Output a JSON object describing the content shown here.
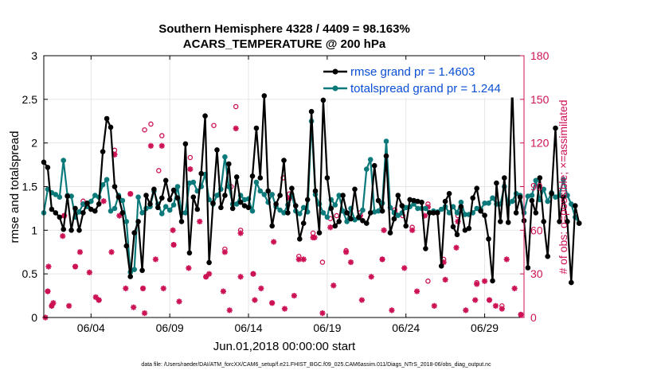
{
  "colors": {
    "rmse": "#000000",
    "spread": "#0c7a7a",
    "obs": "#cc1155",
    "legend_text": "#0a4fd6"
  },
  "chart_data": {
    "type": "line",
    "title_line1": "Southern Hemisphere 4328 / 4409 = 98.163%",
    "title_line2": "ACARS_TEMPERATURE @ 200 hPa",
    "xlabel": "Jun.01,2018 00:00:00 start",
    "ylabel": "rmse and totalspread",
    "y2label": "# of obs: o=possible; ×=assimilated",
    "footer": "data file: /Users/raeder/DAI/ATM_forcXX/CAM6_setup/f.e21.FHIST_BGC.f09_025.CAM6assim.011/Diags_NTrS_2018-06/obs_diag_output.nc",
    "xlim": [
      1,
      31.5
    ],
    "ylim": [
      0,
      3
    ],
    "y2lim": [
      0,
      180
    ],
    "xticks": [
      {
        "label": "06/04",
        "value": 4
      },
      {
        "label": "06/09",
        "value": 9
      },
      {
        "label": "06/14",
        "value": 14
      },
      {
        "label": "06/19",
        "value": 19
      },
      {
        "label": "06/24",
        "value": 24
      },
      {
        "label": "06/29",
        "value": 29
      }
    ],
    "yticks": [
      {
        "label": "0",
        "value": 0
      },
      {
        "label": "0.5",
        "value": 0.5
      },
      {
        "label": "1",
        "value": 1
      },
      {
        "label": "1.5",
        "value": 1.5
      },
      {
        "label": "2",
        "value": 2
      },
      {
        "label": "2.5",
        "value": 2.5
      },
      {
        "label": "3",
        "value": 3
      }
    ],
    "y2ticks": [
      {
        "label": "0",
        "value": 0
      },
      {
        "label": "30",
        "value": 30
      },
      {
        "label": "60",
        "value": 60
      },
      {
        "label": "90",
        "value": 90
      },
      {
        "label": "120",
        "value": 120
      },
      {
        "label": "150",
        "value": 150
      },
      {
        "label": "180",
        "value": 180
      }
    ],
    "legend_position": "top-right",
    "series": [
      {
        "name": "rmse grand pr = 1.4603",
        "key": "rmse",
        "start_day": 1,
        "step_days": 0.25,
        "values": [
          1.78,
          1.72,
          1.24,
          1.2,
          1.15,
          1.01,
          1.39,
          1.0,
          1.25,
          1.0,
          1.2,
          1.31,
          1.24,
          1.22,
          1.3,
          1.9,
          2.28,
          2.18,
          1.5,
          1.38,
          1.2,
          0.82,
          0.47,
          0.97,
          1.1,
          0.54,
          1.4,
          1.3,
          1.47,
          1.26,
          1.37,
          1.57,
          1.35,
          1.46,
          1.37,
          1.1,
          1.99,
          0.74,
          1.38,
          1.24,
          1.65,
          2.31,
          0.63,
          1.31,
          1.92,
          1.26,
          1.4,
          1.76,
          1.25,
          1.61,
          1.32,
          1.28,
          1.26,
          1.62,
          2.17,
          1.6,
          2.54,
          1.45,
          1.05,
          1.3,
          1.4,
          1.8,
          1.2,
          1.48,
          1.28,
          0.9,
          1.08,
          1.35,
          2.36,
          1.45,
          0.97,
          2.49,
          1.6,
          1.25,
          1.05,
          1.1,
          1.4,
          1.2,
          1.13,
          1.47,
          1.15,
          1.11,
          1.08,
          1.2,
          1.74,
          1.34,
          1.22,
          1.85,
          0.97,
          1.13,
          1.4,
          1.28,
          1.05,
          1.35,
          1.34,
          1.33,
          1.32,
          0.79,
          1.2,
          1.2,
          1.2,
          0.59,
          1.33,
          1.42,
          1.04,
          0.95,
          1.27,
          1.0,
          1.02,
          1.37,
          1.48,
          1.22,
          1.17,
          0.9,
          0.42,
          1.54,
          1.1,
          1.6,
          1.09,
          2.66,
          1.2,
          1.38,
          1.11,
          0.57,
          1.34,
          1.2,
          1.6,
          1.1,
          0.7,
          1.42,
          2.17,
          1.1,
          1.38,
          1.1,
          0.4,
          1.28,
          1.08
        ]
      },
      {
        "name": "totalspread grand pr = 1.244",
        "key": "spread",
        "start_day": 1,
        "step_days": 0.25,
        "values": [
          1.2,
          1.47,
          1.43,
          1.41,
          1.38,
          1.8,
          1.4,
          1.39,
          1.15,
          1.21,
          1.3,
          1.27,
          1.33,
          1.4,
          1.38,
          1.52,
          1.58,
          1.22,
          1.25,
          1.4,
          1.34,
          1.1,
          0.52,
          0.55,
          1.38,
          1.2,
          1.25,
          1.27,
          1.45,
          1.3,
          1.19,
          1.27,
          1.23,
          1.29,
          1.5,
          1.2,
          1.2,
          1.54,
          1.55,
          1.45,
          1.5,
          1.64,
          1.35,
          1.3,
          1.4,
          1.47,
          1.84,
          1.5,
          1.3,
          1.3,
          1.4,
          1.35,
          1.36,
          1.22,
          1.55,
          1.45,
          1.41,
          1.32,
          1.41,
          1.27,
          1.23,
          1.2,
          1.29,
          1.41,
          1.22,
          1.19,
          1.26,
          1.21,
          2.25,
          1.41,
          1.3,
          1.2,
          1.15,
          1.35,
          1.29,
          1.4,
          1.22,
          1.1,
          1.25,
          1.12,
          1.14,
          1.23,
          1.7,
          1.81,
          1.21,
          1.22,
          1.31,
          2.02,
          1.26,
          1.2,
          1.17,
          1.2,
          1.26,
          1.27,
          1.3,
          1.25,
          1.25,
          1.25,
          1.2,
          1.22,
          1.21,
          1.24,
          1.27,
          1.2,
          1.27,
          1.2,
          1.32,
          1.18,
          1.18,
          1.2,
          1.25,
          1.24,
          1.31,
          1.31,
          1.37,
          1.3,
          1.3,
          1.5,
          1.3,
          1.33,
          1.42,
          1.4,
          1.2,
          1.39,
          1.4,
          1.57,
          1.35,
          1.47,
          1.33,
          1.43,
          1.38,
          1.4,
          1.58,
          1.4,
          1.3,
          1.15,
          1.08
        ]
      }
    ],
    "obs_possible": {
      "name": "o=possible",
      "days": [
        1.25,
        1.5,
        2.3,
        3.0,
        3.5,
        4.5,
        5.5,
        6.5,
        7.3,
        7.8,
        8.5,
        9.25,
        10.3,
        11.3,
        12.5,
        13.2,
        13.5,
        14.3,
        15.5,
        16.6,
        17.2,
        18.1,
        19.2,
        20.2,
        21.1,
        22.5,
        23.3,
        24.4,
        25.4,
        26.4,
        27.3,
        28.5,
        29.3,
        30.1,
        31.3
      ],
      "values": [
        18,
        8,
        70,
        35,
        80,
        12,
        115,
        85,
        20,
        133,
        125,
        50,
        110,
        28,
        47,
        145,
        60,
        30,
        10,
        85,
        42,
        58,
        68,
        46,
        72,
        40,
        74,
        62,
        78,
        40,
        70,
        24,
        12,
        8,
        2
      ]
    },
    "obs_assimilated": {
      "name": "×=assimilated",
      "days": [
        1.25,
        1.5,
        2.3,
        3.0,
        3.5,
        4.5,
        5.5,
        6.5,
        7.3,
        7.8,
        8.5,
        9.25,
        10.3,
        11.3,
        12.5,
        13.2,
        13.5,
        14.3,
        15.5,
        16.6,
        17.2,
        18.1,
        19.2,
        20.2,
        21.1,
        22.5,
        23.3,
        24.4,
        25.4,
        26.4,
        27.3,
        28.5,
        29.3,
        30.1,
        31.3
      ],
      "values": [
        18,
        8,
        70,
        35,
        78,
        12,
        112,
        85,
        20,
        118,
        118,
        50,
        102,
        28,
        45,
        130,
        58,
        30,
        10,
        82,
        40,
        55,
        62,
        45,
        70,
        40,
        72,
        60,
        76,
        38,
        66,
        23,
        12,
        6,
        2
      ]
    },
    "obs_scatter": {
      "assimilated": [
        [
          1.1,
          0
        ],
        [
          1.6,
          10
        ],
        [
          1.3,
          35
        ],
        [
          2.2,
          56
        ],
        [
          2.6,
          8
        ],
        [
          3.3,
          45
        ],
        [
          3.9,
          31
        ],
        [
          4.3,
          14
        ],
        [
          4.8,
          80
        ],
        [
          5.3,
          45
        ],
        [
          5.8,
          70
        ],
        [
          6.2,
          20
        ],
        [
          6.7,
          7
        ],
        [
          7.4,
          3
        ],
        [
          8.1,
          40
        ],
        [
          8.6,
          20
        ],
        [
          9.2,
          60
        ],
        [
          9.6,
          11
        ],
        [
          10.2,
          34
        ],
        [
          10.9,
          66
        ],
        [
          11.5,
          30
        ],
        [
          12.4,
          18
        ],
        [
          12.8,
          5
        ],
        [
          13.5,
          28
        ],
        [
          14.4,
          12
        ],
        [
          14.8,
          20
        ],
        [
          15.6,
          52
        ],
        [
          16.3,
          6
        ],
        [
          16.9,
          15
        ],
        [
          17.5,
          40
        ],
        [
          18.2,
          55
        ],
        [
          18.7,
          3
        ],
        [
          19.4,
          22
        ],
        [
          20.5,
          38
        ],
        [
          21.2,
          12
        ],
        [
          21.8,
          28
        ],
        [
          22.6,
          60
        ],
        [
          23.1,
          5
        ],
        [
          23.9,
          34
        ],
        [
          24.7,
          18
        ],
        [
          25.2,
          70
        ],
        [
          25.8,
          8
        ],
        [
          26.5,
          26
        ],
        [
          27.2,
          48
        ],
        [
          27.8,
          5
        ],
        [
          28.4,
          12
        ],
        [
          29.0,
          25
        ],
        [
          29.7,
          8
        ],
        [
          30.4,
          40
        ],
        [
          30.9,
          20
        ]
      ],
      "possible_extra": [
        [
          7.4,
          129
        ],
        [
          8.3,
          101
        ],
        [
          11.8,
          132
        ],
        [
          12.9,
          90
        ],
        [
          16.2,
          96
        ],
        [
          18.7,
          38
        ],
        [
          19.6,
          70
        ],
        [
          23.8,
          70
        ],
        [
          25.4,
          25
        ],
        [
          27.5,
          75
        ]
      ]
    }
  }
}
